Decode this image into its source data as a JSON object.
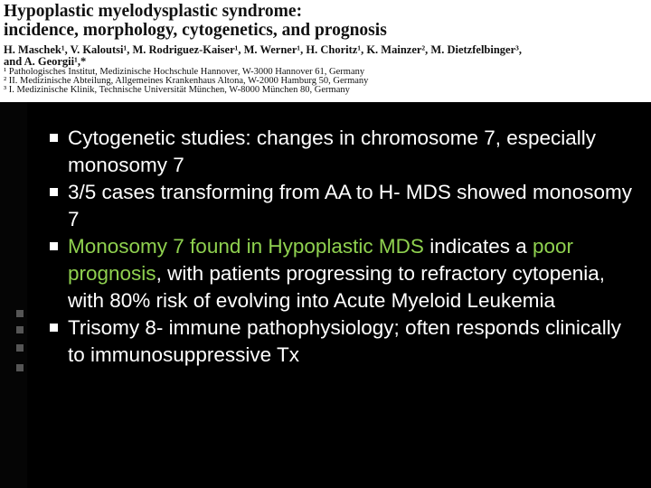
{
  "header": {
    "title_lines": [
      "Hypoplastic myelodysplastic syndrome:",
      "incidence, morphology, cytogenetics, and prognosis"
    ],
    "author_lines": [
      "H. Maschek¹, V. Kaloutsi¹, M. Rodriguez-Kaiser¹, M. Werner¹, H. Choritz¹, K. Mainzer², M. Dietzfelbinger³,",
      "and A. Georgii¹,*"
    ],
    "affiliations": [
      "¹ Pathologisches Institut, Medizinische Hochschule Hannover, W-3000 Hannover 61, Germany",
      "² II. Medizinische Abteilung, Allgemeines Krankenhaus Altona, W-2000 Hamburg 50, Germany",
      "³ I. Medizinische Klinik, Technische Universität München, W-8000 München 80, Germany"
    ]
  },
  "bullets": [
    {
      "segments": [
        {
          "text": "Cytogenetic studies:  changes in chromosome 7, especially monosomy 7",
          "color": "#ffffff"
        }
      ]
    },
    {
      "segments": [
        {
          "text": "3/5 cases transforming from AA to H- MDS showed monosomy 7",
          "color": "#ffffff"
        }
      ]
    },
    {
      "segments": [
        {
          "text": "Monosomy 7 found in Hypoplastic MDS",
          "color": "#8fd14f"
        },
        {
          "text": " indicates a ",
          "color": "#ffffff"
        },
        {
          "text": "poor prognosis",
          "color": "#8fd14f"
        },
        {
          "text": ", with patients progressing to refractory cytopenia, with 80% risk of evolving into Acute Myeloid Leukemia",
          "color": "#ffffff"
        }
      ]
    },
    {
      "segments": [
        {
          "text": "Trisomy 8- immune pathophysiology; often responds clinically to immunosuppressive Tx",
          "color": "#ffffff"
        }
      ]
    }
  ]
}
